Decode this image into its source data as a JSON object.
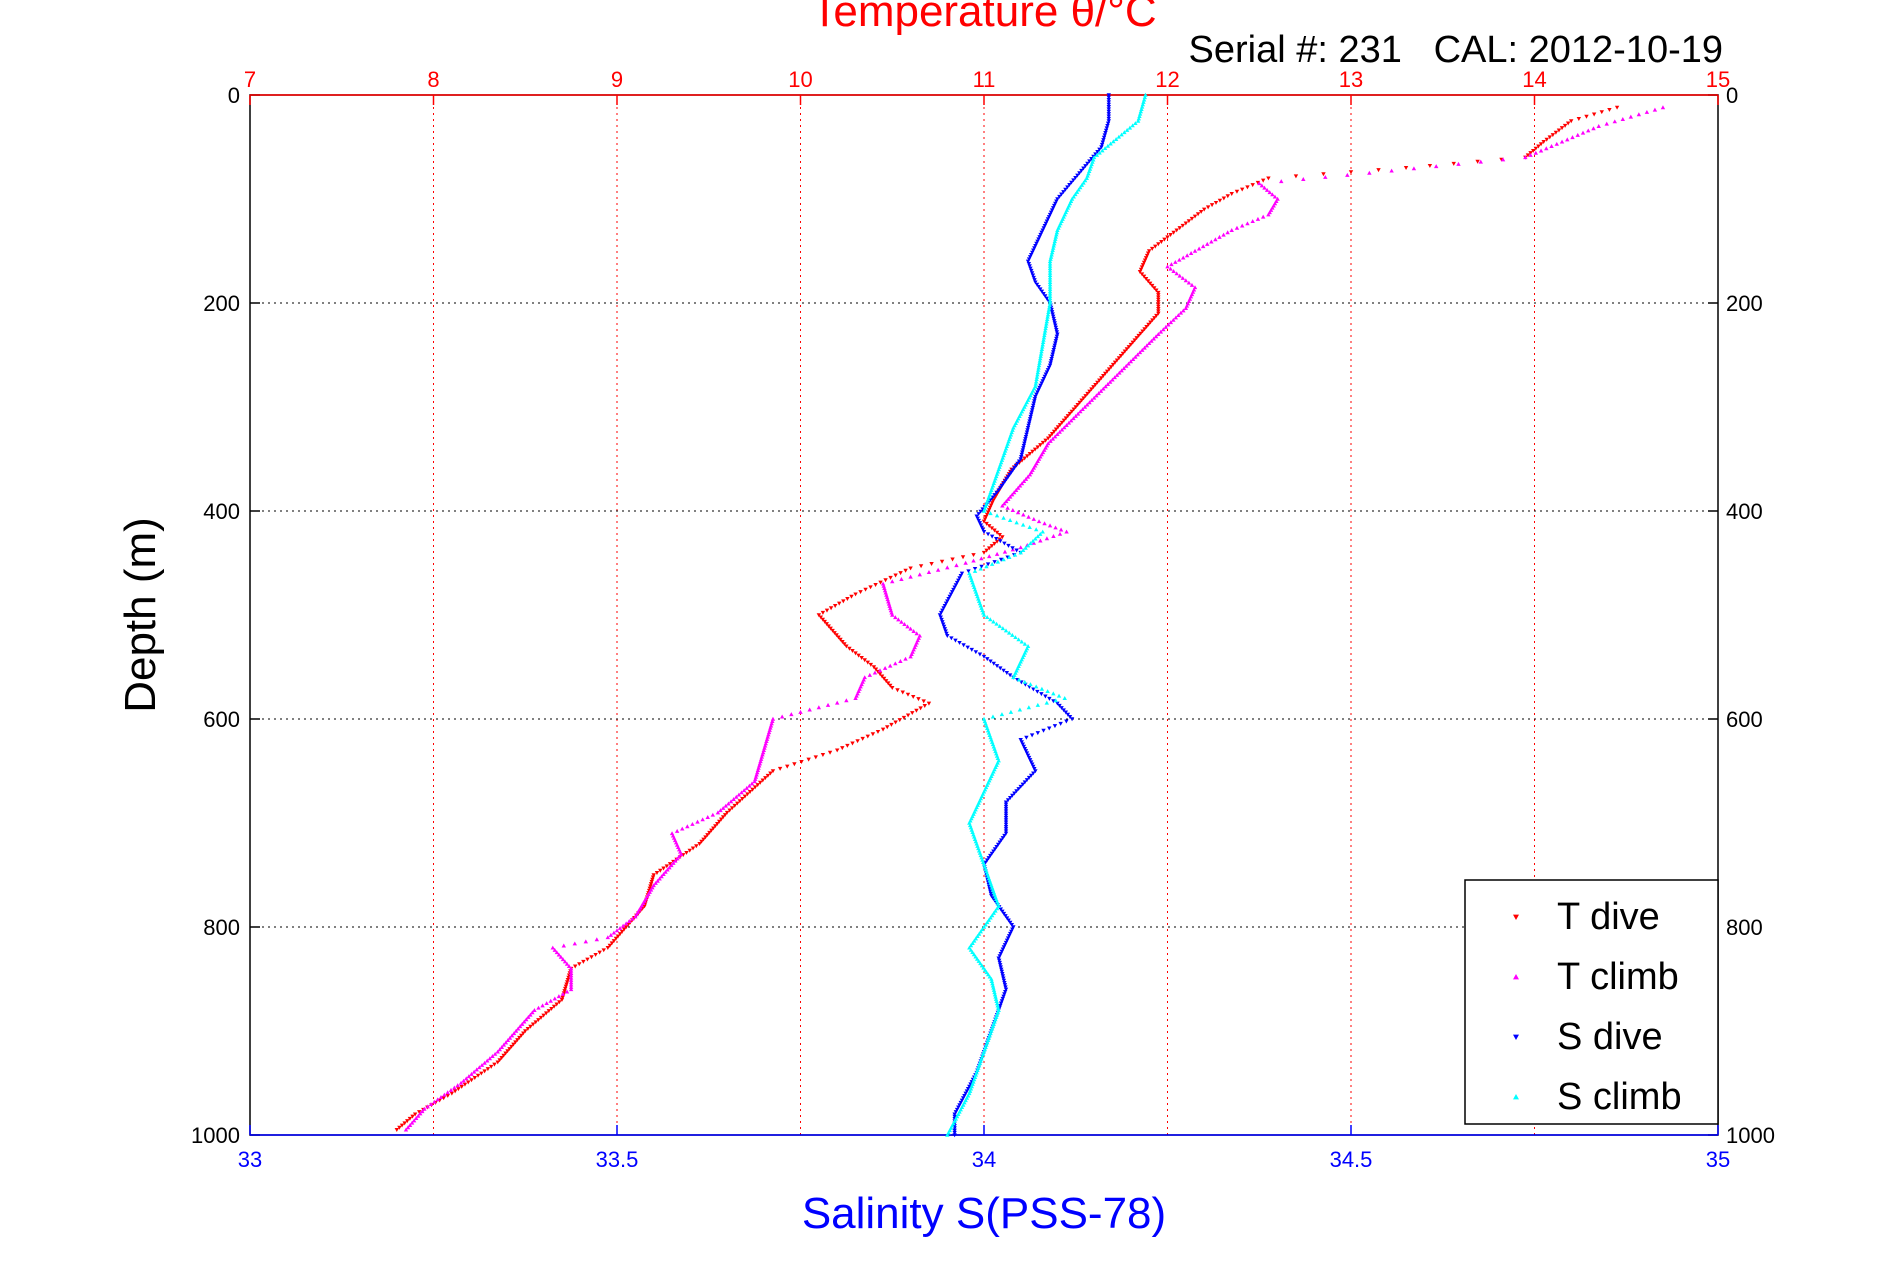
{
  "chart_data": {
    "type": "scatter",
    "title": "Temperature θ/°C",
    "subtitle": "Serial #: 231   CAL: 2012-10-19",
    "ylabel": "Depth (m)",
    "xlabel_bottom": "Salinity S(PSS-78)",
    "xlabel_top": "Temperature θ/°C",
    "ylim": [
      0,
      1000
    ],
    "y_reversed": true,
    "xlim_bottom": [
      33,
      35
    ],
    "xlim_top": [
      7,
      15
    ],
    "yticks": [
      "0",
      "200",
      "400",
      "600",
      "800",
      "1000"
    ],
    "xticks_bottom": [
      "33",
      "33.5",
      "34",
      "34.5",
      "35"
    ],
    "xticks_top": [
      "7",
      "8",
      "9",
      "10",
      "11",
      "12",
      "13",
      "14",
      "15"
    ],
    "grid": true,
    "legend_position": "bottom-right",
    "colors": {
      "temperature_axis": "#ff0000",
      "salinity_axis": "#0000ff",
      "grid_temperature": "#ff0000",
      "grid_depth": "#000000"
    },
    "series": [
      {
        "name": "T dive",
        "axis": "top",
        "color": "#ff0000",
        "marker": "triangle-down",
        "points": [
          [
            14.45,
            12
          ],
          [
            14.2,
            25
          ],
          [
            14.05,
            45
          ],
          [
            13.95,
            60
          ],
          [
            13.3,
            70
          ],
          [
            12.55,
            80
          ],
          [
            12.35,
            95
          ],
          [
            12.2,
            110
          ],
          [
            12.05,
            130
          ],
          [
            11.9,
            150
          ],
          [
            11.85,
            170
          ],
          [
            11.95,
            190
          ],
          [
            11.95,
            210
          ],
          [
            11.8,
            240
          ],
          [
            11.65,
            270
          ],
          [
            11.5,
            300
          ],
          [
            11.35,
            330
          ],
          [
            11.15,
            360
          ],
          [
            11.05,
            390
          ],
          [
            11.0,
            410
          ],
          [
            11.1,
            425
          ],
          [
            11.0,
            440
          ],
          [
            10.6,
            455
          ],
          [
            10.3,
            480
          ],
          [
            10.1,
            500
          ],
          [
            10.25,
            530
          ],
          [
            10.4,
            550
          ],
          [
            10.5,
            570
          ],
          [
            10.7,
            585
          ],
          [
            10.45,
            610
          ],
          [
            10.2,
            630
          ],
          [
            9.85,
            650
          ],
          [
            9.6,
            690
          ],
          [
            9.45,
            720
          ],
          [
            9.2,
            750
          ],
          [
            9.15,
            780
          ],
          [
            9.05,
            800
          ],
          [
            8.95,
            820
          ],
          [
            8.75,
            840
          ],
          [
            8.7,
            870
          ],
          [
            8.5,
            900
          ],
          [
            8.35,
            930
          ],
          [
            8.1,
            960
          ],
          [
            7.9,
            980
          ],
          [
            7.8,
            995
          ]
        ]
      },
      {
        "name": "T climb",
        "axis": "top",
        "color": "#ff00ff",
        "marker": "triangle-up",
        "points": [
          [
            14.7,
            12
          ],
          [
            14.35,
            30
          ],
          [
            13.95,
            60
          ],
          [
            13.1,
            75
          ],
          [
            12.5,
            85
          ],
          [
            12.6,
            100
          ],
          [
            12.55,
            115
          ],
          [
            12.35,
            130
          ],
          [
            12.15,
            150
          ],
          [
            12.0,
            165
          ],
          [
            12.15,
            185
          ],
          [
            12.1,
            205
          ],
          [
            11.95,
            230
          ],
          [
            11.75,
            265
          ],
          [
            11.55,
            300
          ],
          [
            11.35,
            335
          ],
          [
            11.25,
            365
          ],
          [
            11.1,
            395
          ],
          [
            11.3,
            410
          ],
          [
            11.45,
            420
          ],
          [
            11.2,
            435
          ],
          [
            10.9,
            450
          ],
          [
            10.45,
            470
          ],
          [
            10.5,
            500
          ],
          [
            10.65,
            520
          ],
          [
            10.6,
            540
          ],
          [
            10.35,
            560
          ],
          [
            10.3,
            580
          ],
          [
            9.85,
            600
          ],
          [
            9.8,
            630
          ],
          [
            9.75,
            660
          ],
          [
            9.55,
            690
          ],
          [
            9.3,
            710
          ],
          [
            9.35,
            730
          ],
          [
            9.2,
            760
          ],
          [
            9.1,
            790
          ],
          [
            8.95,
            810
          ],
          [
            8.65,
            820
          ],
          [
            8.75,
            840
          ],
          [
            8.75,
            860
          ],
          [
            8.55,
            880
          ],
          [
            8.35,
            920
          ],
          [
            8.15,
            950
          ],
          [
            7.95,
            975
          ],
          [
            7.85,
            995
          ]
        ]
      },
      {
        "name": "S dive",
        "axis": "bottom",
        "color": "#0000ff",
        "marker": "triangle-down",
        "points": [
          [
            34.17,
            0
          ],
          [
            34.17,
            25
          ],
          [
            34.16,
            50
          ],
          [
            34.13,
            75
          ],
          [
            34.1,
            100
          ],
          [
            34.08,
            130
          ],
          [
            34.06,
            160
          ],
          [
            34.07,
            180
          ],
          [
            34.09,
            200
          ],
          [
            34.1,
            230
          ],
          [
            34.09,
            260
          ],
          [
            34.07,
            290
          ],
          [
            34.06,
            320
          ],
          [
            34.05,
            350
          ],
          [
            34.02,
            380
          ],
          [
            33.99,
            405
          ],
          [
            34.0,
            420
          ],
          [
            34.05,
            440
          ],
          [
            33.97,
            460
          ],
          [
            33.94,
            500
          ],
          [
            33.95,
            520
          ],
          [
            34.0,
            540
          ],
          [
            34.04,
            560
          ],
          [
            34.1,
            585
          ],
          [
            34.12,
            600
          ],
          [
            34.05,
            620
          ],
          [
            34.07,
            650
          ],
          [
            34.03,
            680
          ],
          [
            34.03,
            710
          ],
          [
            34.0,
            740
          ],
          [
            34.01,
            770
          ],
          [
            34.04,
            800
          ],
          [
            34.02,
            830
          ],
          [
            34.03,
            860
          ],
          [
            34.01,
            900
          ],
          [
            33.99,
            940
          ],
          [
            33.96,
            980
          ],
          [
            33.96,
            1000
          ]
        ]
      },
      {
        "name": "S climb",
        "axis": "bottom",
        "color": "#00ffff",
        "marker": "triangle-up",
        "points": [
          [
            34.22,
            0
          ],
          [
            34.21,
            25
          ],
          [
            34.15,
            60
          ],
          [
            34.14,
            80
          ],
          [
            34.12,
            100
          ],
          [
            34.1,
            130
          ],
          [
            34.09,
            160
          ],
          [
            34.09,
            200
          ],
          [
            34.08,
            240
          ],
          [
            34.07,
            280
          ],
          [
            34.04,
            320
          ],
          [
            34.02,
            360
          ],
          [
            34.0,
            400
          ],
          [
            34.08,
            420
          ],
          [
            34.05,
            440
          ],
          [
            33.98,
            460
          ],
          [
            34.0,
            500
          ],
          [
            34.06,
            530
          ],
          [
            34.04,
            560
          ],
          [
            34.11,
            580
          ],
          [
            34.0,
            600
          ],
          [
            34.02,
            640
          ],
          [
            34.0,
            670
          ],
          [
            33.98,
            700
          ],
          [
            34.0,
            740
          ],
          [
            34.02,
            780
          ],
          [
            33.98,
            820
          ],
          [
            34.01,
            850
          ],
          [
            34.02,
            880
          ],
          [
            34.0,
            920
          ],
          [
            33.98,
            960
          ],
          [
            33.95,
            1000
          ]
        ]
      }
    ]
  }
}
